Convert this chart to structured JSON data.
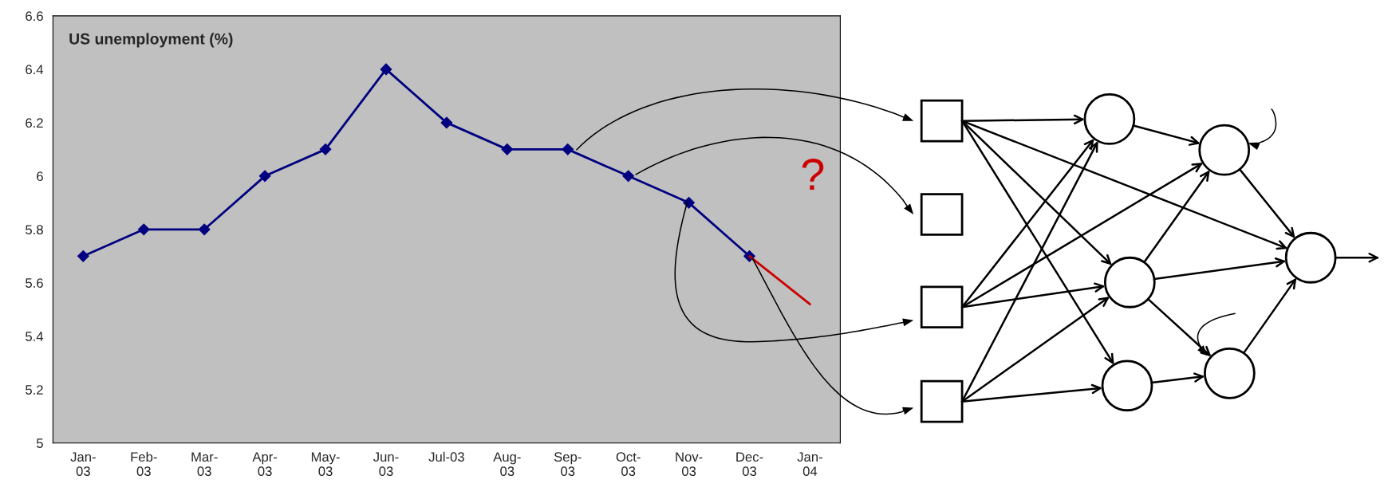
{
  "chart_data": {
    "type": "line",
    "title": "US unemployment (%)",
    "categories": [
      "Jan-\n03",
      "Feb-\n03",
      "Mar-\n03",
      "Apr-\n03",
      "May-\n03",
      "Jun-\n03",
      "Jul-03",
      "Aug-\n03",
      "Sep-\n03",
      "Oct-\n03",
      "Nov-\n03",
      "Dec-\n03",
      "Jan-\n04"
    ],
    "series": [
      {
        "color": "#000080",
        "marker": "diamond",
        "values": [
          5.7,
          5.8,
          5.8,
          6.0,
          6.1,
          6.4,
          6.2,
          6.1,
          6.1,
          6.0,
          5.9,
          5.7,
          null
        ]
      },
      {
        "color": "#cc0000",
        "marker": "none",
        "values": [
          null,
          null,
          null,
          null,
          null,
          null,
          null,
          null,
          null,
          null,
          null,
          5.7,
          5.52
        ]
      }
    ],
    "annotations": [
      "?"
    ],
    "ylim": [
      5,
      6.6
    ],
    "yticks": [
      5,
      5.2,
      5.4,
      5.6,
      5.8,
      6,
      6.2,
      6.4,
      6.6
    ],
    "grid": false
  }
}
